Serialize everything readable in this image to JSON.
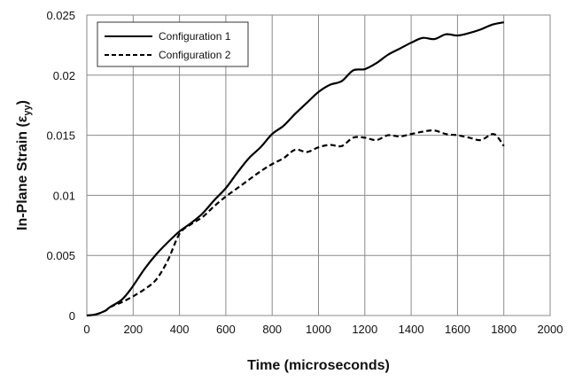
{
  "chart_data": {
    "type": "line",
    "title": "",
    "xlabel": "Time (microseconds)",
    "ylabel": {
      "prefix": "In-Plane Strain (",
      "symbol": "ε",
      "subscript": "yy",
      "suffix": ")"
    },
    "xlim": [
      0,
      2000
    ],
    "ylim": [
      0,
      0.025
    ],
    "x_ticks": [
      {
        "value": 0,
        "label": "0"
      },
      {
        "value": 200,
        "label": "200"
      },
      {
        "value": 400,
        "label": "400"
      },
      {
        "value": 600,
        "label": "600"
      },
      {
        "value": 800,
        "label": "800"
      },
      {
        "value": 1000,
        "label": "1000"
      },
      {
        "value": 1200,
        "label": "1200"
      },
      {
        "value": 1400,
        "label": "1400"
      },
      {
        "value": 1600,
        "label": "1600"
      },
      {
        "value": 1800,
        "label": "1800"
      },
      {
        "value": 2000,
        "label": "2000"
      }
    ],
    "y_ticks": [
      {
        "value": 0,
        "label": "0"
      },
      {
        "value": 0.005,
        "label": "0.005"
      },
      {
        "value": 0.01,
        "label": "0.01"
      },
      {
        "value": 0.015,
        "label": "0.015"
      },
      {
        "value": 0.02,
        "label": "0.02"
      },
      {
        "value": 0.025,
        "label": "0.025"
      }
    ],
    "grid": true,
    "legend": "top-left",
    "series": [
      {
        "name": "Configuration 1",
        "color": "#000000",
        "dash": "solid",
        "points": [
          [
            0,
            0
          ],
          [
            40,
            0.0001
          ],
          [
            80,
            0.0004
          ],
          [
            100,
            0.0007
          ],
          [
            150,
            0.0013
          ],
          [
            190,
            0.0022
          ],
          [
            250,
            0.0039
          ],
          [
            300,
            0.0051
          ],
          [
            350,
            0.0061
          ],
          [
            400,
            0.007
          ],
          [
            450,
            0.0077
          ],
          [
            500,
            0.0085
          ],
          [
            550,
            0.0096
          ],
          [
            600,
            0.0106
          ],
          [
            650,
            0.0119
          ],
          [
            700,
            0.0131
          ],
          [
            750,
            0.014
          ],
          [
            800,
            0.0151
          ],
          [
            850,
            0.0158
          ],
          [
            900,
            0.0168
          ],
          [
            950,
            0.0177
          ],
          [
            1000,
            0.0186
          ],
          [
            1050,
            0.0192
          ],
          [
            1100,
            0.0195
          ],
          [
            1150,
            0.0204
          ],
          [
            1200,
            0.0205
          ],
          [
            1250,
            0.021
          ],
          [
            1300,
            0.0217
          ],
          [
            1350,
            0.0222
          ],
          [
            1400,
            0.0227
          ],
          [
            1450,
            0.0231
          ],
          [
            1500,
            0.023
          ],
          [
            1550,
            0.0234
          ],
          [
            1600,
            0.0233
          ],
          [
            1650,
            0.0235
          ],
          [
            1700,
            0.0238
          ],
          [
            1750,
            0.0242
          ],
          [
            1800,
            0.0244
          ]
        ]
      },
      {
        "name": "Configuration 2",
        "color": "#000000",
        "dash": "dashed",
        "points": [
          [
            0,
            0
          ],
          [
            40,
            0.0001
          ],
          [
            80,
            0.0004
          ],
          [
            100,
            0.0007
          ],
          [
            150,
            0.0011
          ],
          [
            200,
            0.0016
          ],
          [
            250,
            0.0022
          ],
          [
            300,
            0.003
          ],
          [
            350,
            0.0046
          ],
          [
            400,
            0.0068
          ],
          [
            450,
            0.0076
          ],
          [
            500,
            0.0082
          ],
          [
            550,
            0.0091
          ],
          [
            600,
            0.0099
          ],
          [
            650,
            0.0106
          ],
          [
            700,
            0.0113
          ],
          [
            750,
            0.012
          ],
          [
            800,
            0.0126
          ],
          [
            850,
            0.0131
          ],
          [
            900,
            0.0138
          ],
          [
            950,
            0.0136
          ],
          [
            1000,
            0.014
          ],
          [
            1050,
            0.0142
          ],
          [
            1100,
            0.0141
          ],
          [
            1150,
            0.0148
          ],
          [
            1200,
            0.0148
          ],
          [
            1250,
            0.0146
          ],
          [
            1300,
            0.015
          ],
          [
            1350,
            0.0149
          ],
          [
            1400,
            0.0151
          ],
          [
            1450,
            0.0153
          ],
          [
            1500,
            0.0154
          ],
          [
            1550,
            0.0151
          ],
          [
            1600,
            0.015
          ],
          [
            1650,
            0.0148
          ],
          [
            1700,
            0.0146
          ],
          [
            1750,
            0.0151
          ],
          [
            1775,
            0.0148
          ],
          [
            1800,
            0.0141
          ]
        ]
      }
    ]
  }
}
